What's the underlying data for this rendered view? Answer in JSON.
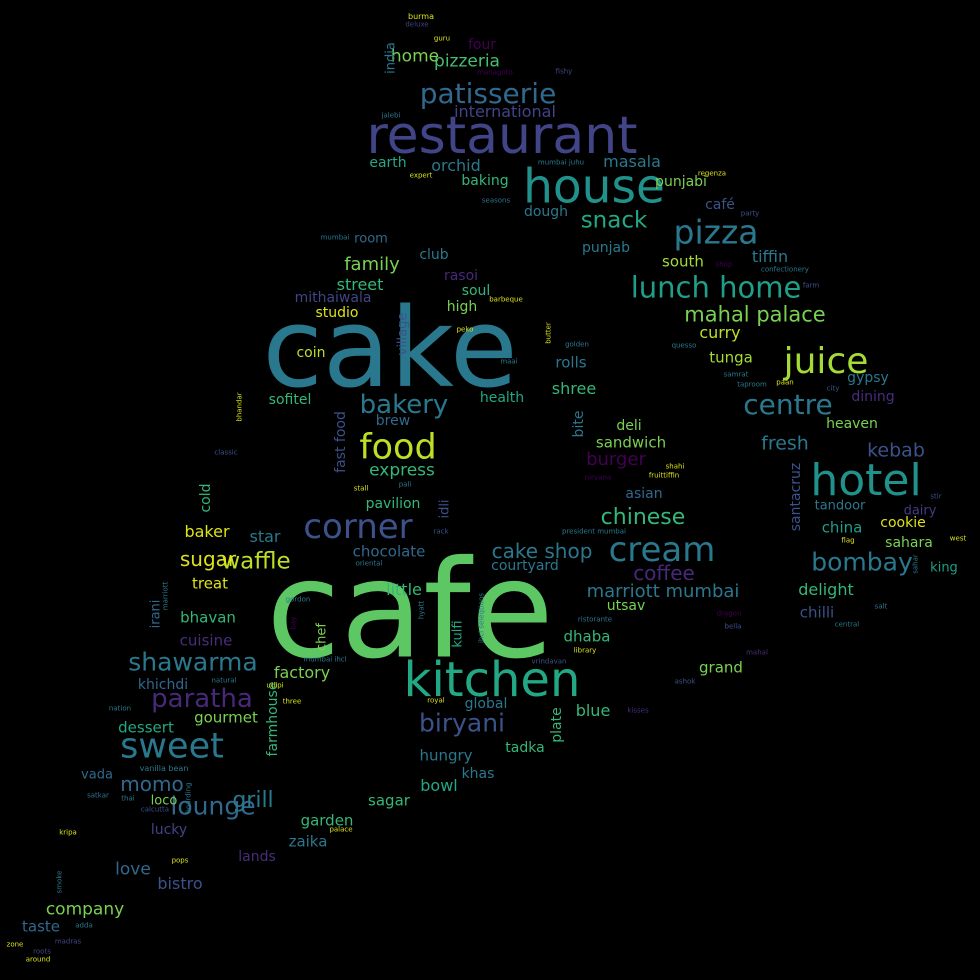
{
  "words": [
    {
      "text": "cafe",
      "color": "#5dc863"
    },
    {
      "text": "cake",
      "color": "#2a788e"
    },
    {
      "text": "kitchen",
      "color": "#22a884"
    },
    {
      "text": "restaurant",
      "color": "#414487"
    },
    {
      "text": "house",
      "color": "#21918c"
    },
    {
      "text": "hotel",
      "color": "#21918c"
    },
    {
      "text": "pizza",
      "color": "#2a788e"
    },
    {
      "text": "cream",
      "color": "#2a788e"
    },
    {
      "text": "food",
      "color": "#bddf26"
    },
    {
      "text": "juice",
      "color": "#a5db36"
    },
    {
      "text": "sweet",
      "color": "#2a788e"
    },
    {
      "text": "corner",
      "color": "#3b528b"
    },
    {
      "text": "lunch home",
      "color": "#1f9e89"
    },
    {
      "text": "patisserie",
      "color": "#31688e"
    },
    {
      "text": "centre",
      "color": "#2a788e"
    },
    {
      "text": "paratha",
      "color": "#482878"
    },
    {
      "text": "bakery",
      "color": "#2a788e"
    },
    {
      "text": "shawarma",
      "color": "#2a788e"
    },
    {
      "text": "bombay",
      "color": "#2a788e"
    },
    {
      "text": "lounge",
      "color": "#31688e"
    },
    {
      "text": "biryani",
      "color": "#3b528b"
    },
    {
      "text": "mahal palace",
      "color": "#7ad151"
    },
    {
      "text": "waffle",
      "color": "#bddf26"
    },
    {
      "text": "snack",
      "color": "#22a884"
    },
    {
      "text": "chinese",
      "color": "#35b779"
    },
    {
      "text": "grill",
      "color": "#2a788e"
    },
    {
      "text": "coffee",
      "color": "#482878"
    },
    {
      "text": "momo",
      "color": "#31688e"
    },
    {
      "text": "cake shop",
      "color": "#2a788e"
    },
    {
      "text": "sugar",
      "color": "#dde318"
    },
    {
      "text": "marriott mumbai",
      "color": "#2a788e"
    },
    {
      "text": "fresh",
      "color": "#2a788e"
    },
    {
      "text": "kebab",
      "color": "#3b528b"
    },
    {
      "text": "international",
      "color": "#414487"
    },
    {
      "text": "pizzeria",
      "color": "#44bf70"
    },
    {
      "text": "family",
      "color": "#7ad151"
    },
    {
      "text": "express",
      "color": "#35b779"
    },
    {
      "text": "burger",
      "color": "#440154"
    },
    {
      "text": "home",
      "color": "#7ad151"
    },
    {
      "text": "delight",
      "color": "#35b779"
    },
    {
      "text": "curry",
      "color": "#bddf26"
    },
    {
      "text": "street",
      "color": "#35b779"
    },
    {
      "text": "tiffin",
      "color": "#2a788e"
    },
    {
      "text": "masala",
      "color": "#2a788e"
    },
    {
      "text": "orchid",
      "color": "#2a788e"
    },
    {
      "text": "south",
      "color": "#a5db36"
    },
    {
      "text": "bistro",
      "color": "#3b528b"
    },
    {
      "text": "company",
      "color": "#7ad151"
    },
    {
      "text": "tunga",
      "color": "#a5db36"
    },
    {
      "text": "factory",
      "color": "#7ad151"
    },
    {
      "text": "cuisine",
      "color": "#472d7b"
    },
    {
      "text": "chilli",
      "color": "#3b528b"
    },
    {
      "text": "rolls",
      "color": "#2a788e"
    },
    {
      "text": "shree",
      "color": "#35b779"
    },
    {
      "text": "bowl",
      "color": "#22a884"
    },
    {
      "text": "chocolate",
      "color": "#31688e"
    },
    {
      "text": "punjabi",
      "color": "#7ad151"
    },
    {
      "text": "mithaiwala",
      "color": "#414487"
    },
    {
      "text": "little",
      "color": "#35b779"
    },
    {
      "text": "sandwich",
      "color": "#7ad151"
    },
    {
      "text": "china",
      "color": "#1f9e89"
    },
    {
      "text": "dhaba",
      "color": "#35b779"
    },
    {
      "text": "heaven",
      "color": "#7ad151"
    },
    {
      "text": "gypsy",
      "color": "#2a788e"
    },
    {
      "text": "dining",
      "color": "#472d7b"
    },
    {
      "text": "baking",
      "color": "#35b779"
    },
    {
      "text": "baker",
      "color": "#dde318"
    },
    {
      "text": "star",
      "color": "#2a788e"
    },
    {
      "text": "love",
      "color": "#31688e"
    },
    {
      "text": "lucky",
      "color": "#414487"
    },
    {
      "text": "taste",
      "color": "#31688e"
    },
    {
      "text": "tandoor",
      "color": "#2a788e"
    },
    {
      "text": "sahara",
      "color": "#7ad151"
    },
    {
      "text": "cookie",
      "color": "#dde318"
    },
    {
      "text": "dairy",
      "color": "#443a83"
    },
    {
      "text": "king",
      "color": "#1f9e89"
    },
    {
      "text": "dough",
      "color": "#2a788e"
    },
    {
      "text": "punjab",
      "color": "#2a788e"
    },
    {
      "text": "café",
      "color": "#3b528b"
    },
    {
      "text": "rasoi",
      "color": "#482878"
    },
    {
      "text": "soul",
      "color": "#35b779"
    },
    {
      "text": "club",
      "color": "#2a788e"
    },
    {
      "text": "high",
      "color": "#7ad151"
    },
    {
      "text": "studio",
      "color": "#dde318"
    },
    {
      "text": "coin",
      "color": "#bddf26"
    },
    {
      "text": "sofitel",
      "color": "#35b779"
    },
    {
      "text": "health",
      "color": "#22a884"
    },
    {
      "text": "brew",
      "color": "#31688e"
    },
    {
      "text": "deli",
      "color": "#7ad151"
    },
    {
      "text": "asian",
      "color": "#31688e"
    },
    {
      "text": "pavilion",
      "color": "#35b779"
    },
    {
      "text": "courtyard",
      "color": "#2a788e"
    },
    {
      "text": "utsav",
      "color": "#7ad151"
    },
    {
      "text": "treat",
      "color": "#dde318"
    },
    {
      "text": "bhavan",
      "color": "#35b779"
    },
    {
      "text": "khichdi",
      "color": "#31688e"
    },
    {
      "text": "dessert",
      "color": "#22a884"
    },
    {
      "text": "gourmet",
      "color": "#7ad151"
    },
    {
      "text": "vada",
      "color": "#31688e"
    },
    {
      "text": "loco",
      "color": "#7ad151"
    },
    {
      "text": "garden",
      "color": "#35b779"
    },
    {
      "text": "zaika",
      "color": "#2a788e"
    },
    {
      "text": "lands",
      "color": "#472d7b"
    },
    {
      "text": "sagar",
      "color": "#35b779"
    },
    {
      "text": "hungry",
      "color": "#2a788e"
    },
    {
      "text": "khas",
      "color": "#2a788e"
    },
    {
      "text": "tadka",
      "color": "#35b779"
    },
    {
      "text": "blue",
      "color": "#35b779"
    },
    {
      "text": "grand",
      "color": "#7ad151"
    },
    {
      "text": "global",
      "color": "#2a788e"
    },
    {
      "text": "earth",
      "color": "#22a884"
    },
    {
      "text": "four",
      "color": "#440154"
    },
    {
      "text": "room",
      "color": "#31688e"
    },
    {
      "text": "india",
      "color": "#2a788e",
      "vertical": true
    },
    {
      "text": "fast food",
      "color": "#3b528b",
      "vertical": true
    },
    {
      "text": "village",
      "color": "#3b528b",
      "vertical": true
    },
    {
      "text": "cold",
      "color": "#35b779",
      "vertical": true
    },
    {
      "text": "idli",
      "color": "#3b528b",
      "vertical": true
    },
    {
      "text": "irani",
      "color": "#31688e",
      "vertical": true
    },
    {
      "text": "chef",
      "color": "#7ad151",
      "vertical": true
    },
    {
      "text": "farmhouse",
      "color": "#35b779",
      "vertical": true
    },
    {
      "text": "kulfi",
      "color": "#22a884",
      "vertical": true
    },
    {
      "text": "plate",
      "color": "#35b779",
      "vertical": true
    },
    {
      "text": "bite",
      "color": "#2a788e",
      "vertical": true
    },
    {
      "text": "santacruz",
      "color": "#3b528b",
      "vertical": true
    },
    {
      "text": "burma",
      "color": "#dde318"
    },
    {
      "text": "deluxe",
      "color": "#414487"
    },
    {
      "text": "guru",
      "color": "#dde318"
    },
    {
      "text": "managoto",
      "color": "#440154"
    },
    {
      "text": "fishy",
      "color": "#414487"
    },
    {
      "text": "jalebi",
      "color": "#2a788e"
    },
    {
      "text": "expert",
      "color": "#dde318"
    },
    {
      "text": "mumbai juhu",
      "color": "#2a788e"
    },
    {
      "text": "seasons",
      "color": "#2a788e"
    },
    {
      "text": "regenza",
      "color": "#dde318"
    },
    {
      "text": "party",
      "color": "#3b528b"
    },
    {
      "text": "confectionery",
      "color": "#2a788e"
    },
    {
      "text": "mumbai",
      "color": "#2a788e"
    },
    {
      "text": "barbeque",
      "color": "#dde318"
    },
    {
      "text": "farm",
      "color": "#3b528b"
    },
    {
      "text": "golden",
      "color": "#2a788e"
    },
    {
      "text": "peko",
      "color": "#dde318"
    },
    {
      "text": "maai",
      "color": "#2a788e"
    },
    {
      "text": "quesso",
      "color": "#2a788e"
    },
    {
      "text": "samrat",
      "color": "#2a788e"
    },
    {
      "text": "taproom",
      "color": "#2a788e"
    },
    {
      "text": "paan",
      "color": "#dde318"
    },
    {
      "text": "city",
      "color": "#3b528b"
    },
    {
      "text": "classic",
      "color": "#3b528b"
    },
    {
      "text": "stall",
      "color": "#dde318"
    },
    {
      "text": "pali",
      "color": "#2a788e"
    },
    {
      "text": "nirvana",
      "color": "#440154"
    },
    {
      "text": "shahi",
      "color": "#dde318"
    },
    {
      "text": "fruittiffin",
      "color": "#dde318"
    },
    {
      "text": "oriental",
      "color": "#2a788e"
    },
    {
      "text": "president mumbai",
      "color": "#2a788e"
    },
    {
      "text": "rack",
      "color": "#3b528b"
    },
    {
      "text": "west",
      "color": "#dde318"
    },
    {
      "text": "flag",
      "color": "#dde318"
    },
    {
      "text": "central",
      "color": "#2a788e"
    },
    {
      "text": "stir",
      "color": "#3b528b"
    },
    {
      "text": "gordon",
      "color": "#2a788e"
    },
    {
      "text": "ristorante",
      "color": "#2a788e"
    },
    {
      "text": "dragon",
      "color": "#440154"
    },
    {
      "text": "salt",
      "color": "#2a788e"
    },
    {
      "text": "bella",
      "color": "#3b528b"
    },
    {
      "text": "mumbai ihcl",
      "color": "#2a788e"
    },
    {
      "text": "library",
      "color": "#dde318"
    },
    {
      "text": "vrindavan",
      "color": "#3b528b"
    },
    {
      "text": "mahal",
      "color": "#472d7b"
    },
    {
      "text": "natural",
      "color": "#2a788e"
    },
    {
      "text": "udipi",
      "color": "#dde318"
    },
    {
      "text": "ashok",
      "color": "#3b528b"
    },
    {
      "text": "nation",
      "color": "#2a788e"
    },
    {
      "text": "three",
      "color": "#dde318"
    },
    {
      "text": "royal",
      "color": "#dde318"
    },
    {
      "text": "kisses",
      "color": "#472d7b"
    },
    {
      "text": "vanilla bean",
      "color": "#2a788e"
    },
    {
      "text": "satkar",
      "color": "#2a788e"
    },
    {
      "text": "thai",
      "color": "#2a788e"
    },
    {
      "text": "calcutta",
      "color": "#3b528b"
    },
    {
      "text": "kripa",
      "color": "#dde318"
    },
    {
      "text": "pops",
      "color": "#dde318"
    },
    {
      "text": "palace",
      "color": "#dde318"
    },
    {
      "text": "adda",
      "color": "#2a788e"
    },
    {
      "text": "zone",
      "color": "#dde318"
    },
    {
      "text": "madras",
      "color": "#414487"
    },
    {
      "text": "around",
      "color": "#dde318"
    },
    {
      "text": "roots",
      "color": "#414487"
    },
    {
      "text": "shop",
      "color": "#440154"
    },
    {
      "text": "bhandar",
      "color": "#dde318",
      "vertical": true
    },
    {
      "text": "butter",
      "color": "#dde318",
      "vertical": true
    },
    {
      "text": "marriott",
      "color": "#2a788e",
      "vertical": true
    },
    {
      "text": "hyatt",
      "color": "#2a788e",
      "vertical": true
    },
    {
      "text": "ihcl seleqtions",
      "color": "#2a788e",
      "vertical": true
    },
    {
      "text": "bay",
      "color": "#440154",
      "vertical": true
    },
    {
      "text": "boarding",
      "color": "#2a788e",
      "vertical": true
    },
    {
      "text": "sahar",
      "color": "#2a788e",
      "vertical": true
    },
    {
      "text": "smoke",
      "color": "#2a788e",
      "vertical": true
    }
  ]
}
